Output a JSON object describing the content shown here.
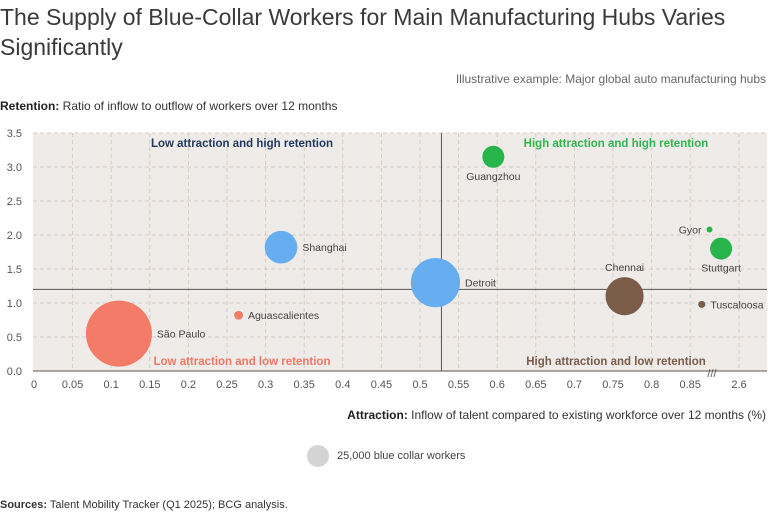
{
  "header": {
    "title": "The Supply of Blue-Collar Workers for Main Manufacturing Hubs Varies Significantly",
    "subtitle": "Illustrative example: Major global auto manufacturing hubs"
  },
  "axes": {
    "y_title_bold": "Retention:",
    "y_title_rest": " Ratio of inflow to outflow of workers over 12 months",
    "x_title_bold": "Attraction:",
    "x_title_rest": " Inflow of talent compared to existing workforce over 12 months (%)",
    "axis_break_symbol": "///"
  },
  "legend": {
    "label": "25,000 blue collar workers"
  },
  "footer": {
    "sources_bold": "Sources:",
    "sources_rest": " Talent Mobility Tracker (Q1 2025); BCG analysis."
  },
  "chart_data": {
    "type": "scatter",
    "xlim": [
      0,
      2.6
    ],
    "ylim": [
      0,
      3.5
    ],
    "x_axis_break": "between 0.9 and 2.6",
    "x_ticks": [
      0,
      0.05,
      0.1,
      0.15,
      0.2,
      0.25,
      0.3,
      0.35,
      0.4,
      0.45,
      0.5,
      0.55,
      0.6,
      0.65,
      0.7,
      0.75,
      0.8,
      0.85,
      2.6
    ],
    "y_ticks": [
      0.0,
      0.5,
      1.0,
      1.5,
      2.0,
      2.5,
      3.0,
      3.5
    ],
    "x_tick_labels": [
      "0",
      "0.05",
      "0.1",
      "0.15",
      "0.2",
      "0.25",
      "0.3",
      "0.35",
      "0.4",
      "0.45",
      "0.5",
      "0.55",
      "0.6",
      "0.65",
      "0.7",
      "0.75",
      "0.8",
      "0.85",
      "2.6"
    ],
    "y_tick_labels": [
      "0.0",
      "0.5",
      "1.0",
      "1.5",
      "2.0",
      "2.5",
      "3.0",
      "3.5"
    ],
    "grid": true,
    "divider_x": 0.52,
    "divider_y": 1.2,
    "legend_bubble_workers": 25000,
    "quadrants": [
      {
        "label": "Low attraction and high retention",
        "color": "#1f3a5f",
        "position": "top-left"
      },
      {
        "label": "High attraction and high retention",
        "color": "#2eb84f",
        "position": "top-right"
      },
      {
        "label": "Low attraction and low retention",
        "color": "#f07864",
        "position": "bottom-left"
      },
      {
        "label": "High attraction and low retention",
        "color": "#7a5c48",
        "position": "bottom-right"
      }
    ],
    "points": [
      {
        "name": "São Paulo",
        "x": 0.11,
        "y": 0.55,
        "workers": 225000,
        "color": "#f47b67",
        "label_side": "right"
      },
      {
        "name": "Aguascalientes",
        "x": 0.265,
        "y": 0.82,
        "workers": 4000,
        "color": "#f47b67",
        "label_side": "right"
      },
      {
        "name": "Shanghai",
        "x": 0.32,
        "y": 1.82,
        "workers": 55000,
        "color": "#66aef0",
        "label_side": "right"
      },
      {
        "name": "Detroit",
        "x": 0.52,
        "y": 1.3,
        "workers": 125000,
        "color": "#66aef0",
        "label_side": "right"
      },
      {
        "name": "Guangzhou",
        "x": 0.595,
        "y": 3.15,
        "workers": 25000,
        "color": "#27b44a",
        "label_side": "below"
      },
      {
        "name": "Chennai",
        "x": 0.765,
        "y": 1.1,
        "workers": 75000,
        "color": "#7a5c48",
        "label_side": "above"
      },
      {
        "name": "Tuscaloosa",
        "x": 0.865,
        "y": 0.98,
        "workers": 2600,
        "color": "#7a5c48",
        "label_side": "right"
      },
      {
        "name": "Gyor",
        "x": 0.875,
        "y": 2.08,
        "workers": 1100,
        "color": "#27b44a",
        "label_side": "left"
      },
      {
        "name": "Stuttgart",
        "x": 0.89,
        "y": 1.8,
        "workers": 25000,
        "color": "#27b44a",
        "label_side": "below"
      }
    ]
  }
}
